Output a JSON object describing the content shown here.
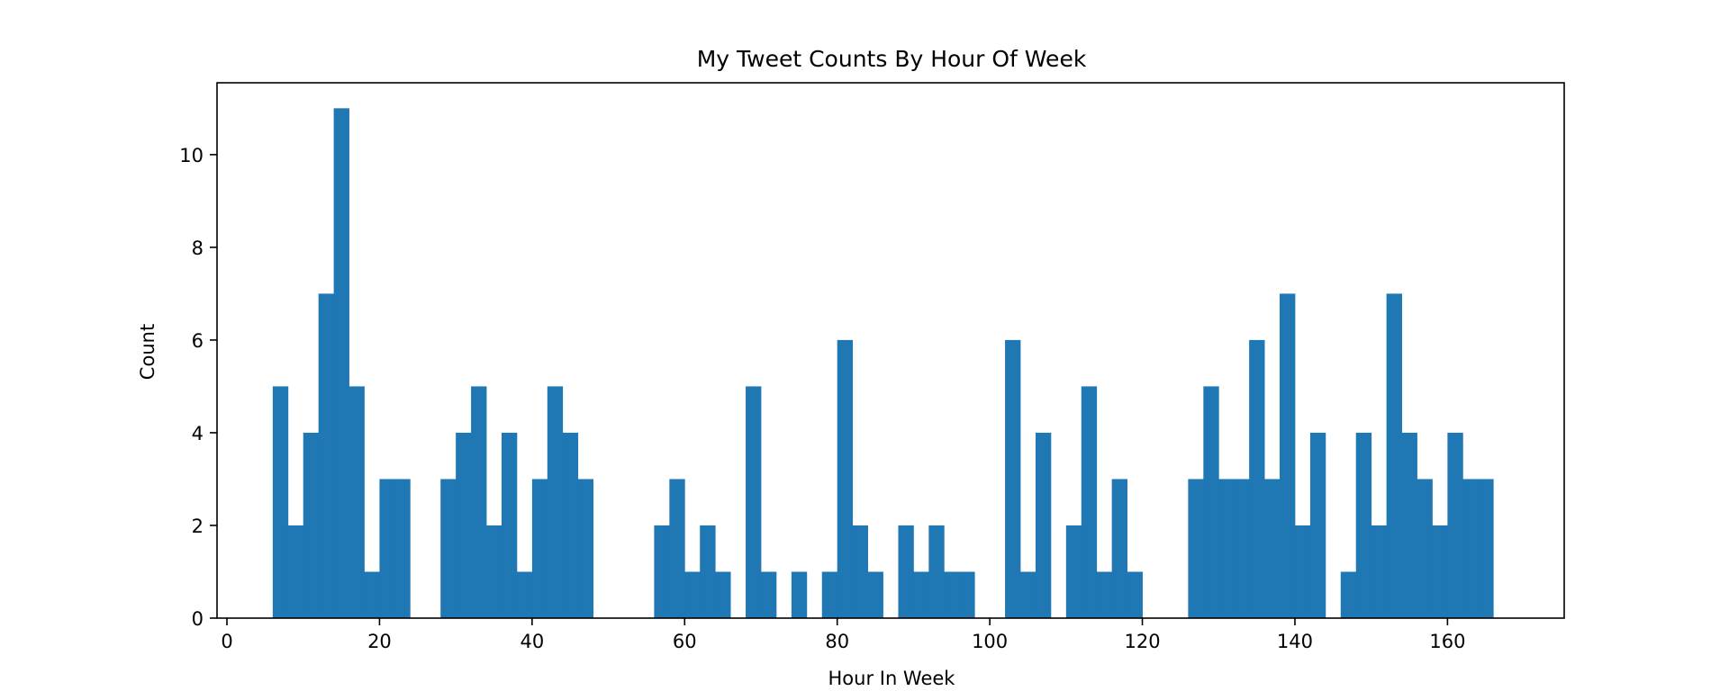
{
  "chart_data": {
    "type": "bar",
    "title": "My Tweet Counts By Hour Of Week",
    "xlabel": "Hour In Week",
    "ylabel": "Count",
    "xlim": [
      -1.3,
      175.3
    ],
    "ylim": [
      0,
      11.55
    ],
    "xticks": [
      0,
      20,
      40,
      60,
      80,
      100,
      120,
      140,
      160
    ],
    "yticks": [
      0,
      2,
      4,
      6,
      8,
      10
    ],
    "bin_width": 2,
    "bins": [
      {
        "x": 7,
        "count": 5
      },
      {
        "x": 9,
        "count": 2
      },
      {
        "x": 11,
        "count": 4
      },
      {
        "x": 13,
        "count": 7
      },
      {
        "x": 15,
        "count": 11
      },
      {
        "x": 17,
        "count": 5
      },
      {
        "x": 19,
        "count": 1
      },
      {
        "x": 21,
        "count": 3
      },
      {
        "x": 23,
        "count": 3
      },
      {
        "x": 25,
        "count": 0
      },
      {
        "x": 27,
        "count": 0
      },
      {
        "x": 29,
        "count": 3
      },
      {
        "x": 31,
        "count": 4
      },
      {
        "x": 33,
        "count": 5
      },
      {
        "x": 35,
        "count": 2
      },
      {
        "x": 37,
        "count": 4
      },
      {
        "x": 39,
        "count": 1
      },
      {
        "x": 41,
        "count": 3
      },
      {
        "x": 43,
        "count": 5
      },
      {
        "x": 45,
        "count": 4
      },
      {
        "x": 47,
        "count": 3
      },
      {
        "x": 49,
        "count": 0
      },
      {
        "x": 51,
        "count": 0
      },
      {
        "x": 53,
        "count": 0
      },
      {
        "x": 55,
        "count": 0
      },
      {
        "x": 57,
        "count": 2
      },
      {
        "x": 59,
        "count": 3
      },
      {
        "x": 61,
        "count": 1
      },
      {
        "x": 63,
        "count": 2
      },
      {
        "x": 65,
        "count": 1
      },
      {
        "x": 67,
        "count": 0
      },
      {
        "x": 69,
        "count": 5
      },
      {
        "x": 71,
        "count": 1
      },
      {
        "x": 73,
        "count": 0
      },
      {
        "x": 75,
        "count": 1
      },
      {
        "x": 77,
        "count": 0
      },
      {
        "x": 79,
        "count": 1
      },
      {
        "x": 81,
        "count": 6
      },
      {
        "x": 83,
        "count": 2
      },
      {
        "x": 85,
        "count": 1
      },
      {
        "x": 87,
        "count": 0
      },
      {
        "x": 89,
        "count": 2
      },
      {
        "x": 91,
        "count": 1
      },
      {
        "x": 93,
        "count": 2
      },
      {
        "x": 95,
        "count": 1
      },
      {
        "x": 97,
        "count": 1
      },
      {
        "x": 99,
        "count": 0
      },
      {
        "x": 101,
        "count": 0
      },
      {
        "x": 103,
        "count": 6
      },
      {
        "x": 105,
        "count": 1
      },
      {
        "x": 107,
        "count": 4
      },
      {
        "x": 109,
        "count": 0
      },
      {
        "x": 111,
        "count": 2
      },
      {
        "x": 113,
        "count": 5
      },
      {
        "x": 115,
        "count": 1
      },
      {
        "x": 117,
        "count": 3
      },
      {
        "x": 119,
        "count": 1
      },
      {
        "x": 121,
        "count": 0
      },
      {
        "x": 123,
        "count": 0
      },
      {
        "x": 125,
        "count": 0
      },
      {
        "x": 127,
        "count": 3
      },
      {
        "x": 129,
        "count": 5
      },
      {
        "x": 131,
        "count": 3
      },
      {
        "x": 133,
        "count": 3
      },
      {
        "x": 135,
        "count": 6
      },
      {
        "x": 137,
        "count": 3
      },
      {
        "x": 139,
        "count": 7
      },
      {
        "x": 141,
        "count": 2
      },
      {
        "x": 143,
        "count": 4
      },
      {
        "x": 145,
        "count": 0
      },
      {
        "x": 147,
        "count": 1
      },
      {
        "x": 149,
        "count": 4
      },
      {
        "x": 151,
        "count": 2
      },
      {
        "x": 153,
        "count": 7
      },
      {
        "x": 155,
        "count": 4
      },
      {
        "x": 157,
        "count": 3
      },
      {
        "x": 159,
        "count": 2
      },
      {
        "x": 161,
        "count": 4
      },
      {
        "x": 163,
        "count": 3
      },
      {
        "x": 165,
        "count": 3
      }
    ],
    "bar_color": "#1f77b4",
    "grid": false,
    "legend": "none"
  }
}
